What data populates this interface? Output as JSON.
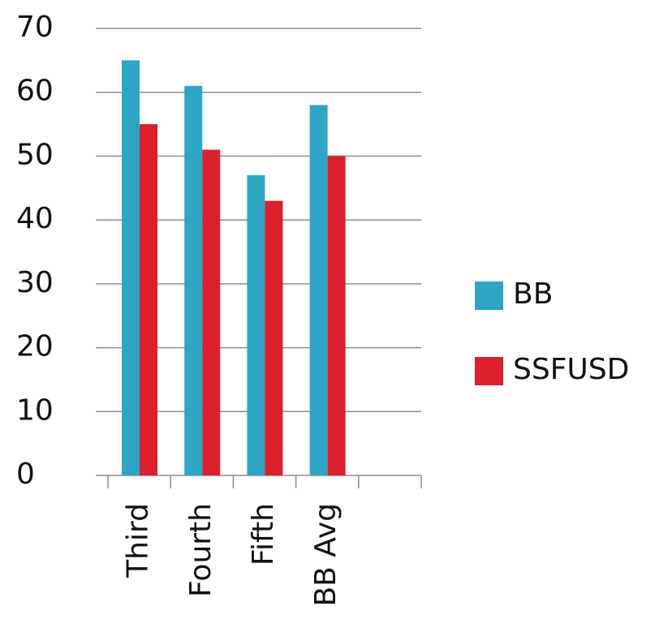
{
  "chart_data": {
    "type": "bar",
    "categories": [
      "Third",
      "Fourth",
      "Fifth",
      "BB Avg",
      null
    ],
    "series": [
      {
        "name": "BB",
        "color": "#2ea5c4",
        "values": [
          65,
          61,
          47,
          58,
          null
        ]
      },
      {
        "name": "SSFUSD",
        "color": "#dc1f2c",
        "values": [
          55,
          51,
          43,
          50,
          null
        ]
      }
    ],
    "ylim": [
      0,
      70
    ],
    "yticks": [
      0,
      10,
      20,
      30,
      40,
      50,
      60,
      70
    ],
    "grid": true,
    "legend": "right"
  }
}
